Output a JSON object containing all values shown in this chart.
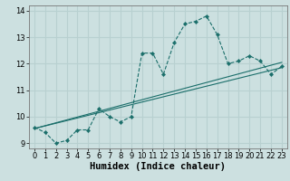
{
  "title": "",
  "xlabel": "Humidex (Indice chaleur)",
  "ylabel": "",
  "bg_color": "#cce0e0",
  "grid_color": "#b8d0d0",
  "line_color": "#1a6e6a",
  "x_values": [
    0,
    1,
    2,
    3,
    4,
    5,
    6,
    7,
    8,
    9,
    10,
    11,
    12,
    13,
    14,
    15,
    16,
    17,
    18,
    19,
    20,
    21,
    22,
    23
  ],
  "y_main": [
    9.6,
    9.4,
    9.0,
    9.1,
    9.5,
    9.5,
    10.3,
    10.0,
    9.8,
    10.0,
    12.4,
    12.4,
    11.6,
    12.8,
    13.5,
    13.6,
    13.8,
    13.1,
    12.0,
    12.1,
    12.3,
    12.1,
    11.6,
    11.9
  ],
  "ylim": [
    8.8,
    14.2
  ],
  "xlim": [
    -0.5,
    23.5
  ],
  "yticks": [
    9,
    10,
    11,
    12,
    13,
    14
  ],
  "xticks": [
    0,
    1,
    2,
    3,
    4,
    5,
    6,
    7,
    8,
    9,
    10,
    11,
    12,
    13,
    14,
    15,
    16,
    17,
    18,
    19,
    20,
    21,
    22,
    23
  ],
  "tick_fontsize": 6,
  "xlabel_fontsize": 7.5,
  "trend1_x": [
    0,
    23
  ],
  "trend1_y": [
    9.55,
    11.85
  ],
  "trend2_x": [
    0,
    23
  ],
  "trend2_y": [
    9.55,
    12.05
  ]
}
